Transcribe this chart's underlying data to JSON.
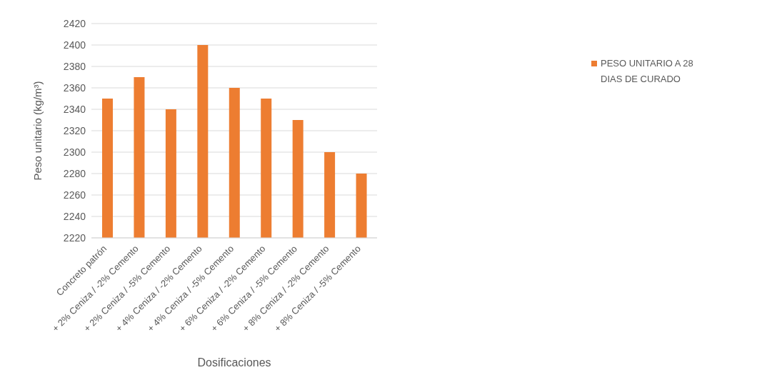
{
  "chart_data": {
    "type": "bar",
    "xlabel": "Dosificaciones",
    "ylabel": "Peso unitario (kg/m³)",
    "categories": [
      "Concreto patrón",
      "+ 2% Ceniza / -2% Cemento",
      "+ 2% Ceniza / -5% Cemento",
      "+ 4% Ceniza / -2% Cemento",
      "+ 4% Ceniza / -5% Cemento",
      "+ 6% Ceniza / -2% Cemento",
      "+ 6% Ceniza / -5% Cemento",
      "+ 8% Ceniza / -2% Cemento",
      "+ 8% Ceniza / -5% Cemento"
    ],
    "series": [
      {
        "name": "PESO UNITARIO A 28 DIAS DE CURADO",
        "color": "#ed7d31",
        "values": [
          2350,
          2370,
          2340,
          2400,
          2360,
          2350,
          2330,
          2300,
          2280
        ]
      }
    ],
    "ylim": [
      2220,
      2420
    ],
    "yticks": [
      2220,
      2240,
      2260,
      2280,
      2300,
      2320,
      2340,
      2360,
      2380,
      2400,
      2420
    ],
    "grid": "y",
    "legend": "right"
  }
}
